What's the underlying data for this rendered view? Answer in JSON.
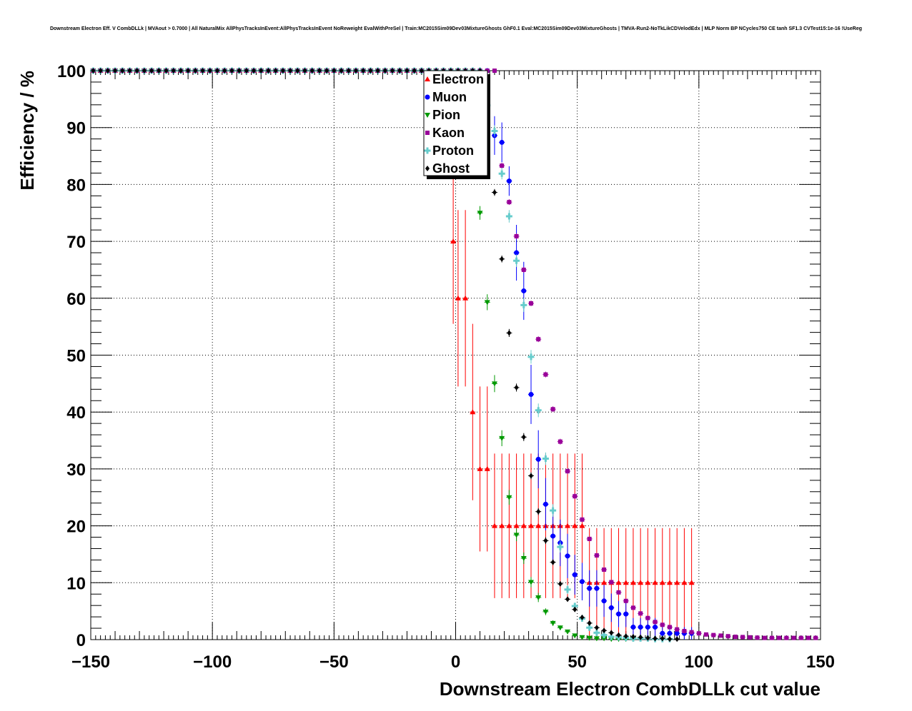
{
  "chart_data": {
    "type": "scatter",
    "title": "Downstream Electron Eff. V CombDLLk | MVAout > 0.7000 | All NaturalMix AllPhysTracksInEvent:AllPhysTracksInEvent NoReweight EvalWithPreSel | Train:MC2015Sim09Dev03MixtureGhosts GhF0.1 Eval:MC2015Sim09Dev03MixtureGhosts | TMVA-Run2-NoTkLikCDVelodEdx | MLP Norm BP NCycles750 CE tanh SF1.3 CVTest15:1e-16 !UseReg",
    "xlabel": "Downstream Electron CombDLLk cut value",
    "ylabel": "Efficiency / %",
    "xlim": [
      -150,
      150
    ],
    "ylim": [
      0,
      100
    ],
    "x_ticks": [
      "−150",
      "−100",
      "−50",
      "0",
      "50",
      "100",
      "150"
    ],
    "y_ticks": [
      "0",
      "10",
      "20",
      "30",
      "40",
      "50",
      "60",
      "70",
      "80",
      "90",
      "100"
    ],
    "grid": true,
    "legend_position": "top-center",
    "series": [
      {
        "name": "Electron",
        "color": "#ff0000",
        "marker": "triangle-up",
        "x": [
          -1,
          1,
          4,
          7,
          10,
          13,
          16,
          19,
          22,
          25,
          28,
          31,
          34,
          37,
          40,
          43,
          46,
          49,
          52,
          55,
          58,
          61,
          64,
          67,
          70,
          73,
          76,
          79,
          82,
          85,
          88,
          91,
          94,
          97
        ],
        "y": [
          70,
          60,
          60,
          40,
          30,
          30,
          20,
          20,
          20,
          20,
          20,
          20,
          20,
          20,
          20,
          20,
          20,
          20,
          20,
          10,
          10,
          10,
          10,
          10,
          10,
          10,
          10,
          10,
          10,
          10,
          10,
          10,
          10,
          10
        ],
        "yerr": [
          14.5,
          15.5,
          15.5,
          15.5,
          14.5,
          14.5,
          12.7,
          12.7,
          12.7,
          12.7,
          12.7,
          12.7,
          12.7,
          12.7,
          12.7,
          12.7,
          12.7,
          12.7,
          12.7,
          9.6,
          9.6,
          9.6,
          9.6,
          9.6,
          9.6,
          9.6,
          9.6,
          9.6,
          9.6,
          9.6,
          9.6,
          9.6,
          9.6,
          9.6
        ]
      },
      {
        "name": "Muon",
        "color": "#0000ff",
        "marker": "circle",
        "x": [
          16,
          19,
          22,
          25,
          28,
          31,
          34,
          37,
          40,
          43,
          46,
          49,
          52,
          55,
          58,
          61,
          64,
          67,
          70,
          73,
          76,
          79,
          82,
          85,
          88,
          91,
          94,
          97
        ],
        "y": [
          88.6,
          87.4,
          80.6,
          68.0,
          61.3,
          43.1,
          31.7,
          23.8,
          18.2,
          17.0,
          14.7,
          11.4,
          10.2,
          9.0,
          9.0,
          6.8,
          5.6,
          4.5,
          4.5,
          2.2,
          2.2,
          2.2,
          2.2,
          1.1,
          1.1,
          1.1,
          1.1,
          1.1
        ],
        "yerr": [
          3.4,
          3.5,
          2.6,
          4.9,
          5.1,
          5.2,
          5.1,
          4.6,
          4.3,
          4.1,
          3.9,
          3.5,
          3.3,
          3.2,
          3.2,
          2.8,
          2.5,
          2.3,
          2.3,
          1.6,
          1.6,
          1.6,
          1.6,
          1.1,
          1.1,
          1.1,
          1.1,
          1.1
        ]
      },
      {
        "name": "Pion",
        "color": "#009900",
        "marker": "triangle-down",
        "x": [
          10,
          13,
          16,
          19,
          22,
          25,
          28,
          31,
          34,
          37,
          40,
          43,
          46,
          49,
          52,
          55,
          58,
          61,
          64,
          67,
          70,
          73
        ],
        "y": [
          75.0,
          59.3,
          45.0,
          35.4,
          25.0,
          18.4,
          14.3,
          10.1,
          7.4,
          4.9,
          2.9,
          2.1,
          1.4,
          0.7,
          0.4,
          0.3,
          0.2,
          0.2,
          0.1,
          0.1,
          0.1,
          0.1
        ],
        "yerr": [
          1.2,
          1.4,
          1.5,
          1.4,
          1.3,
          1.1,
          1.0,
          0.9,
          0.8,
          0.6,
          0.5,
          0.4,
          0.3,
          0.2,
          0.2,
          0.1,
          0.1,
          0.1,
          0.1,
          0.1,
          0.1,
          0.1
        ]
      },
      {
        "name": "Kaon",
        "color": "#990099",
        "marker": "square",
        "x": [
          19,
          22,
          25,
          28,
          31,
          34,
          37,
          40,
          43,
          46,
          49,
          52,
          55,
          58,
          61,
          64,
          67,
          70,
          73,
          76,
          79,
          82,
          85,
          88,
          91,
          94,
          97,
          100,
          103,
          106,
          109,
          112,
          115,
          118,
          121,
          124,
          127,
          130,
          133,
          136,
          139,
          142,
          145,
          148
        ],
        "y": [
          83.3,
          76.9,
          70.9,
          65.0,
          59.1,
          52.8,
          46.6,
          40.5,
          34.8,
          29.6,
          25.2,
          21.1,
          17.7,
          14.8,
          12.3,
          10.1,
          8.3,
          6.8,
          5.6,
          4.6,
          3.8,
          3.1,
          2.6,
          2.2,
          1.8,
          1.5,
          1.3,
          1.1,
          0.9,
          0.8,
          0.7,
          0.6,
          0.5,
          0.45,
          0.4,
          0.35,
          0.3,
          0.3,
          0.3,
          0.3,
          0.3,
          0.3,
          0.3,
          0.3
        ],
        "yerr": [
          0.5,
          0.5,
          0.5,
          0.5,
          0.5,
          0.5,
          0.5,
          0.5,
          0.5,
          0.5,
          0.5,
          0.4,
          0.4,
          0.4,
          0.3,
          0.3,
          0.3,
          0.3,
          0.2,
          0.2,
          0.2,
          0.2,
          0.2,
          0.2,
          0.1,
          0.1,
          0.1,
          0.1,
          0.1,
          0.1,
          0.1,
          0.1,
          0.1,
          0.1,
          0.1,
          0.1,
          0.1,
          0.1,
          0.1,
          0.1,
          0.1,
          0.1,
          0.1,
          0.1
        ]
      },
      {
        "name": "Proton",
        "color": "#66cccc",
        "marker": "cross",
        "x": [
          13,
          16,
          19,
          22,
          25,
          28,
          31,
          34,
          37,
          40,
          43,
          46,
          49,
          52,
          55,
          58,
          61,
          64,
          67,
          70,
          73,
          76,
          79,
          82,
          85,
          88
        ],
        "y": [
          93.9,
          89.4,
          81.9,
          74.4,
          66.6,
          58.8,
          49.7,
          40.3,
          31.8,
          22.7,
          16.3,
          8.8,
          5.9,
          3.7,
          2.1,
          1.2,
          0.8,
          0.5,
          0.4,
          0.3,
          0.2,
          0.2,
          0.2,
          0.1,
          0.1,
          0.1
        ],
        "yerr": [
          1.0,
          1.0,
          1.0,
          1.1,
          1.1,
          1.2,
          1.2,
          1.2,
          1.1,
          1.1,
          1.0,
          0.8,
          0.6,
          0.5,
          0.4,
          0.3,
          0.2,
          0.2,
          0.2,
          0.1,
          0.1,
          0.1,
          0.1,
          0.1,
          0.1,
          0.1
        ]
      },
      {
        "name": "Ghost",
        "color": "#000000",
        "marker": "diamond",
        "x": [
          13,
          16,
          19,
          22,
          25,
          28,
          31,
          34,
          37,
          40,
          43,
          46,
          49,
          52,
          55,
          58,
          61,
          64,
          67,
          70,
          73,
          76,
          79,
          82,
          85,
          88,
          91
        ],
        "y": [
          89.0,
          78.6,
          66.9,
          53.9,
          44.3,
          35.6,
          28.8,
          22.5,
          17.4,
          13.6,
          9.8,
          7.1,
          5.3,
          3.9,
          2.9,
          2.1,
          1.6,
          1.2,
          0.8,
          0.6,
          0.5,
          0.4,
          0.3,
          0.2,
          0.2,
          0.1,
          0.1
        ],
        "yerr": [
          0.5,
          0.6,
          0.6,
          0.7,
          0.7,
          0.7,
          0.6,
          0.6,
          0.6,
          0.5,
          0.4,
          0.4,
          0.3,
          0.3,
          0.2,
          0.2,
          0.2,
          0.1,
          0.1,
          0.1,
          0.1,
          0.1,
          0.1,
          0.1,
          0.1,
          0.1,
          0.1
        ]
      }
    ]
  }
}
